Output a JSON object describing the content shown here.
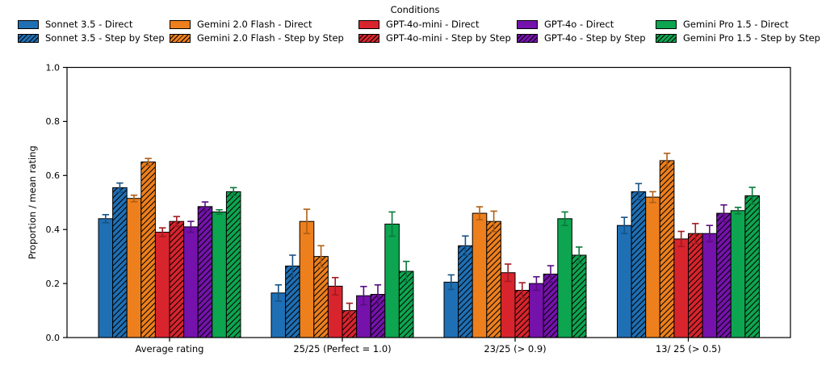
{
  "chart_data": {
    "type": "bar",
    "title": "",
    "legend": {
      "title": "Conditions",
      "position": "top",
      "columns": 5
    },
    "xlabel": "",
    "ylabel": "Proportion / mean rating",
    "ylim": [
      0.0,
      1.0
    ],
    "yticks": [
      "0.0",
      "0.2",
      "0.4",
      "0.6",
      "0.8",
      "1.0"
    ],
    "grid": false,
    "categories": [
      "Average rating",
      "25/25 (Perfect = 1.0)",
      "23/25 (> 0.9)",
      "13/ 25 (> 0.5)"
    ],
    "series": [
      {
        "name": "Sonnet 3.5 - Direct",
        "color": "#1f6fb4",
        "hatch": false,
        "values": [
          0.44,
          0.165,
          0.205,
          0.415
        ],
        "errors": [
          0.015,
          0.03,
          0.027,
          0.03
        ]
      },
      {
        "name": "Sonnet 3.5 - Step by Step",
        "color": "#1f6fb4",
        "hatch": true,
        "values": [
          0.555,
          0.265,
          0.34,
          0.54
        ],
        "errors": [
          0.017,
          0.04,
          0.036,
          0.03
        ]
      },
      {
        "name": "Gemini 2.0 Flash - Direct",
        "color": "#ee7f1d",
        "hatch": false,
        "values": [
          0.515,
          0.43,
          0.46,
          0.52
        ],
        "errors": [
          0.012,
          0.045,
          0.024,
          0.02
        ]
      },
      {
        "name": "Gemini 2.0 Flash - Step by Step",
        "color": "#ee7f1d",
        "hatch": true,
        "values": [
          0.65,
          0.3,
          0.43,
          0.655
        ],
        "errors": [
          0.013,
          0.04,
          0.038,
          0.027
        ]
      },
      {
        "name": "GPT-4o-mini - Direct",
        "color": "#d8242c",
        "hatch": false,
        "values": [
          0.39,
          0.19,
          0.24,
          0.365
        ],
        "errors": [
          0.016,
          0.032,
          0.032,
          0.028
        ]
      },
      {
        "name": "GPT-4o-mini - Step by Step",
        "color": "#d8242c",
        "hatch": true,
        "values": [
          0.43,
          0.1,
          0.175,
          0.385
        ],
        "errors": [
          0.018,
          0.027,
          0.028,
          0.037
        ]
      },
      {
        "name": "GPT-4o - Direct",
        "color": "#7512ab",
        "hatch": false,
        "values": [
          0.41,
          0.155,
          0.2,
          0.385
        ],
        "errors": [
          0.02,
          0.034,
          0.025,
          0.03
        ]
      },
      {
        "name": "GPT-4o - Step by Step",
        "color": "#7512ab",
        "hatch": true,
        "values": [
          0.485,
          0.16,
          0.235,
          0.46
        ],
        "errors": [
          0.017,
          0.035,
          0.031,
          0.031
        ]
      },
      {
        "name": "Gemini Pro 1.5 - Direct",
        "color": "#0ea551",
        "hatch": false,
        "values": [
          0.465,
          0.42,
          0.44,
          0.47
        ],
        "errors": [
          0.008,
          0.045,
          0.025,
          0.012
        ]
      },
      {
        "name": "Gemini Pro 1.5 - Step by Step",
        "color": "#0ea551",
        "hatch": true,
        "values": [
          0.54,
          0.245,
          0.305,
          0.525
        ],
        "errors": [
          0.015,
          0.037,
          0.03,
          0.031
        ]
      }
    ]
  }
}
